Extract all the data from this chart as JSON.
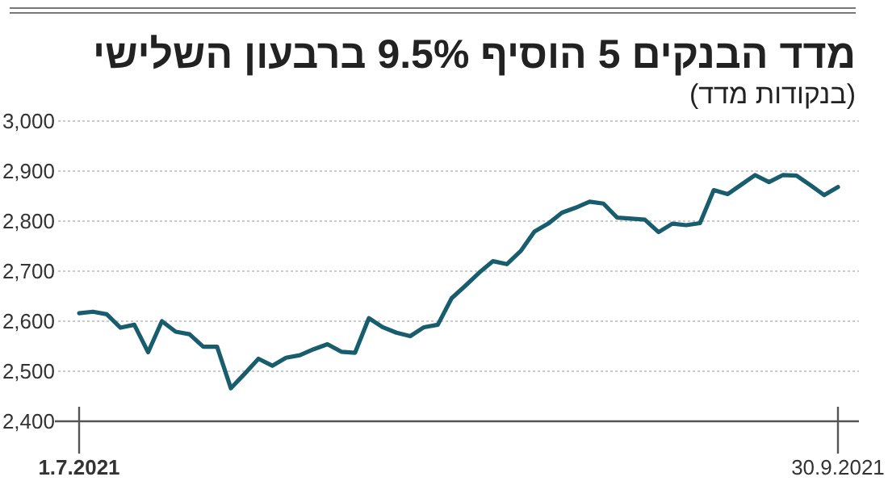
{
  "chart_data": {
    "type": "line",
    "title": "מדד הבנקים 5 הוסיף 9.5% ברבעון השלישי",
    "subtitle": "(בנקודות מדד)",
    "categories": [
      "1.7.2021",
      null,
      null,
      null,
      null,
      null,
      null,
      null,
      null,
      null,
      null,
      null,
      null,
      null,
      null,
      null,
      null,
      null,
      null,
      null,
      null,
      null,
      null,
      null,
      null,
      null,
      null,
      null,
      null,
      null,
      null,
      null,
      null,
      null,
      null,
      null,
      null,
      null,
      null,
      null,
      null,
      null,
      null,
      null,
      null,
      null,
      null,
      null,
      null,
      null,
      null,
      null,
      null,
      null,
      null,
      "30.9.2021"
    ],
    "series": [
      {
        "color": "#175d6d",
        "values": [
          2616,
          2619,
          2614,
          2587,
          2593,
          2538,
          2600,
          2579,
          2574,
          2549,
          2549,
          2466,
          2495,
          2525,
          2511,
          2527,
          2532,
          2544,
          2554,
          2539,
          2537,
          2606,
          2588,
          2577,
          2570,
          2588,
          2593,
          2646,
          2671,
          2697,
          2720,
          2714,
          2740,
          2779,
          2795,
          2817,
          2827,
          2839,
          2835,
          2807,
          2805,
          2803,
          2778,
          2795,
          2792,
          2796,
          2862,
          2854,
          2873,
          2892,
          2878,
          2892,
          2891,
          2872,
          2852,
          2868
        ]
      }
    ],
    "ylim": [
      2400,
      3000
    ],
    "yticks": [
      {
        "value": 2400,
        "label": "2,400"
      },
      {
        "value": 2500,
        "label": "2,500"
      },
      {
        "value": 2600,
        "label": "2,600"
      },
      {
        "value": 2700,
        "label": "2,700"
      },
      {
        "value": 2800,
        "label": "2,800"
      },
      {
        "value": 2900,
        "label": "2,900"
      },
      {
        "value": 3000,
        "label": "3,000"
      }
    ],
    "grid": "y",
    "marker": "none",
    "line_style": "solid"
  }
}
